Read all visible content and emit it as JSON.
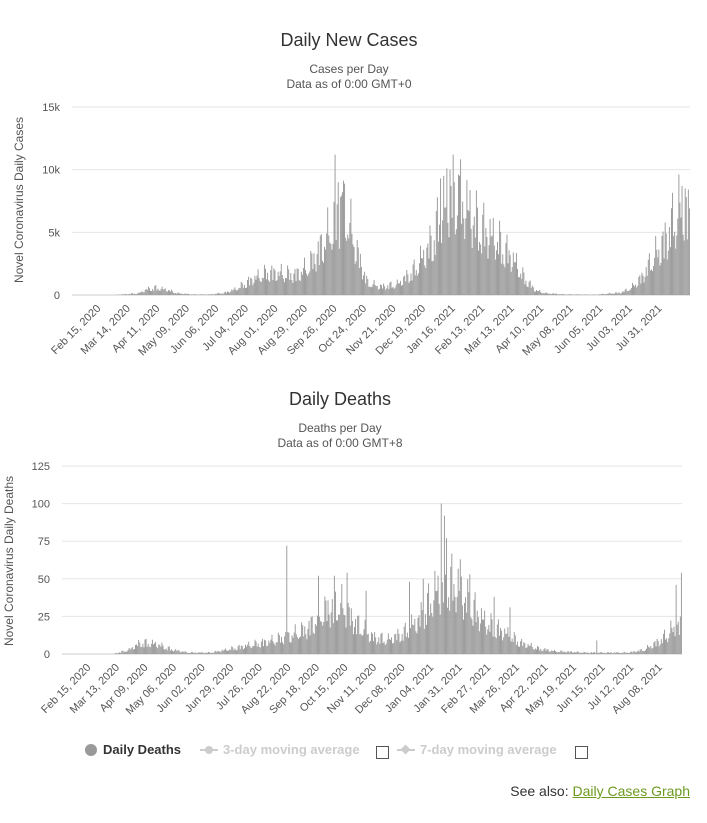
{
  "chart_data": [
    {
      "type": "bar",
      "title": "Daily New Cases",
      "subtitle": [
        "Cases per Day",
        "Data as of 0:00 GMT+0"
      ],
      "ylabel": "Novel Coronavirus Daily Cases",
      "ylim": [
        0,
        15000
      ],
      "yticks": [
        0,
        5000,
        10000,
        15000
      ],
      "ytick_labels": [
        "0",
        "5k",
        "10k",
        "15k"
      ],
      "x_start": "2020-01-22",
      "x_end": "2021-08-29",
      "xtick_labels": [
        "Feb 15, 2020",
        "Mar 14, 2020",
        "Apr 11, 2020",
        "May 09, 2020",
        "Jun 06, 2020",
        "Jul 04, 2020",
        "Aug 01, 2020",
        "Aug 29, 2020",
        "Sep 26, 2020",
        "Oct 24, 2020",
        "Nov 21, 2020",
        "Dec 19, 2020",
        "Jan 16, 2021",
        "Feb 13, 2021",
        "Mar 13, 2021",
        "Apr 10, 2021",
        "May 08, 2021",
        "Jun 05, 2021",
        "Jul 03, 2021",
        "Jul 31, 2021"
      ],
      "series": [
        {
          "name": "",
          "color": "#999999",
          "anchors": [
            [
              "2020-01-22",
              0
            ],
            [
              "2020-03-01",
              0
            ],
            [
              "2020-03-25",
              150
            ],
            [
              "2020-04-02",
              500
            ],
            [
              "2020-04-10",
              600
            ],
            [
              "2020-04-20",
              450
            ],
            [
              "2020-05-01",
              150
            ],
            [
              "2020-05-15",
              50
            ],
            [
              "2020-06-01",
              50
            ],
            [
              "2020-06-15",
              200
            ],
            [
              "2020-06-25",
              500
            ],
            [
              "2020-07-10",
              1300
            ],
            [
              "2020-07-25",
              1900
            ],
            [
              "2020-08-10",
              1800
            ],
            [
              "2020-08-20",
              1700
            ],
            [
              "2020-09-01",
              2300
            ],
            [
              "2020-09-10",
              3500
            ],
            [
              "2020-09-20",
              5000
            ],
            [
              "2020-09-30",
              6500
            ],
            [
              "2020-10-05",
              7500
            ],
            [
              "2020-10-12",
              5500
            ],
            [
              "2020-10-20",
              3000
            ],
            [
              "2020-10-28",
              1000
            ],
            [
              "2020-11-10",
              700
            ],
            [
              "2020-11-25",
              900
            ],
            [
              "2020-12-10",
              2000
            ],
            [
              "2020-12-25",
              4000
            ],
            [
              "2021-01-05",
              6500
            ],
            [
              "2021-01-15",
              8500
            ],
            [
              "2021-01-25",
              8000
            ],
            [
              "2021-02-05",
              6500
            ],
            [
              "2021-02-15",
              5500
            ],
            [
              "2021-03-01",
              4500
            ],
            [
              "2021-03-15",
              3000
            ],
            [
              "2021-03-25",
              1500
            ],
            [
              "2021-04-05",
              400
            ],
            [
              "2021-04-15",
              150
            ],
            [
              "2021-05-01",
              60
            ],
            [
              "2021-06-01",
              30
            ],
            [
              "2021-06-25",
              200
            ],
            [
              "2021-07-05",
              600
            ],
            [
              "2021-07-15",
              1500
            ],
            [
              "2021-07-25",
              3000
            ],
            [
              "2021-08-05",
              4500
            ],
            [
              "2021-08-15",
              6500
            ],
            [
              "2021-08-22",
              7500
            ],
            [
              "2021-08-29",
              6500
            ]
          ],
          "peaks": [
            [
              "2020-09-27",
              11200
            ],
            [
              "2020-09-30",
              9000
            ],
            [
              "2020-10-04",
              8200
            ],
            [
              "2020-10-02",
              7800
            ],
            [
              "2021-01-05",
              9300
            ],
            [
              "2021-01-08",
              9500
            ],
            [
              "2021-01-11",
              10100
            ],
            [
              "2021-01-14",
              10000
            ],
            [
              "2021-01-18",
              9000
            ],
            [
              "2021-01-22",
              9600
            ],
            [
              "2021-08-22",
              8700
            ],
            [
              "2021-08-25",
              8500
            ]
          ]
        }
      ]
    },
    {
      "type": "bar",
      "title": "Daily Deaths",
      "subtitle": [
        "Deaths per Day",
        "Data as of 0:00 GMT+8"
      ],
      "ylabel": "Novel Coronavirus Daily Deaths",
      "ylim": [
        0,
        125
      ],
      "yticks": [
        0,
        25,
        50,
        75,
        100,
        125
      ],
      "ytick_labels": [
        "0",
        "25",
        "50",
        "75",
        "100",
        "125"
      ],
      "x_start": "2020-01-22",
      "x_end": "2021-08-29",
      "xtick_labels": [
        "Feb 15, 2020",
        "Mar 13, 2020",
        "Apr 09, 2020",
        "May 06, 2020",
        "Jun 02, 2020",
        "Jun 29, 2020",
        "Jul 26, 2020",
        "Aug 22, 2020",
        "Sep 18, 2020",
        "Oct 15, 2020",
        "Nov 11, 2020",
        "Dec 08, 2020",
        "Jan 04, 2021",
        "Jan 31, 2021",
        "Feb 27, 2021",
        "Mar 26, 2021",
        "Apr 22, 2021",
        "May 19, 2021",
        "Jun 15, 2021",
        "Jul 12, 2021",
        "Aug 08, 2021"
      ],
      "series": [
        {
          "name": "Daily Deaths",
          "color": "#999999",
          "anchors": [
            [
              "2020-01-22",
              0
            ],
            [
              "2020-03-10",
              0
            ],
            [
              "2020-03-25",
              3
            ],
            [
              "2020-04-05",
              8
            ],
            [
              "2020-04-20",
              7
            ],
            [
              "2020-05-05",
              3
            ],
            [
              "2020-05-20",
              1
            ],
            [
              "2020-06-10",
              1
            ],
            [
              "2020-06-25",
              3
            ],
            [
              "2020-07-15",
              6
            ],
            [
              "2020-08-05",
              9
            ],
            [
              "2020-08-25",
              13
            ],
            [
              "2020-09-10",
              18
            ],
            [
              "2020-09-25",
              30
            ],
            [
              "2020-10-10",
              35
            ],
            [
              "2020-10-25",
              22
            ],
            [
              "2020-11-10",
              12
            ],
            [
              "2020-11-25",
              10
            ],
            [
              "2020-12-10",
              15
            ],
            [
              "2020-12-25",
              25
            ],
            [
              "2021-01-10",
              45
            ],
            [
              "2021-01-25",
              50
            ],
            [
              "2021-02-10",
              35
            ],
            [
              "2021-02-25",
              22
            ],
            [
              "2021-03-15",
              15
            ],
            [
              "2021-03-30",
              8
            ],
            [
              "2021-04-15",
              4
            ],
            [
              "2021-05-01",
              2
            ],
            [
              "2021-06-01",
              1
            ],
            [
              "2021-07-10",
              1
            ],
            [
              "2021-07-25",
              3
            ],
            [
              "2021-08-10",
              10
            ],
            [
              "2021-08-20",
              17
            ],
            [
              "2021-08-29",
              20
            ]
          ],
          "peaks": [
            [
              "2020-08-21",
              72
            ],
            [
              "2020-09-20",
              52
            ],
            [
              "2020-10-05",
              52
            ],
            [
              "2020-10-17",
              54
            ],
            [
              "2020-11-04",
              42
            ],
            [
              "2020-12-15",
              48
            ],
            [
              "2020-12-28",
              50
            ],
            [
              "2021-01-14",
              100
            ],
            [
              "2021-01-17",
              92
            ],
            [
              "2021-01-19",
              77
            ],
            [
              "2021-02-01",
              63
            ],
            [
              "2021-02-10",
              53
            ],
            [
              "2021-03-05",
              38
            ],
            [
              "2021-03-20",
              31
            ],
            [
              "2021-06-10",
              9
            ],
            [
              "2021-08-24",
              46
            ],
            [
              "2021-08-29",
              54
            ]
          ]
        }
      ]
    }
  ],
  "legend": {
    "items": [
      {
        "label": "Daily Deaths",
        "active": true
      },
      {
        "label": "3-day moving average",
        "active": false
      },
      {
        "label": "7-day moving average",
        "active": false
      }
    ]
  },
  "see_also": {
    "prefix": "See also:",
    "link": "Daily Cases Graph"
  },
  "colors": {
    "bar": "#999999",
    "grid": "#e6e6e6",
    "link": "#6c9a1f",
    "legend_off": "#cccccc"
  }
}
